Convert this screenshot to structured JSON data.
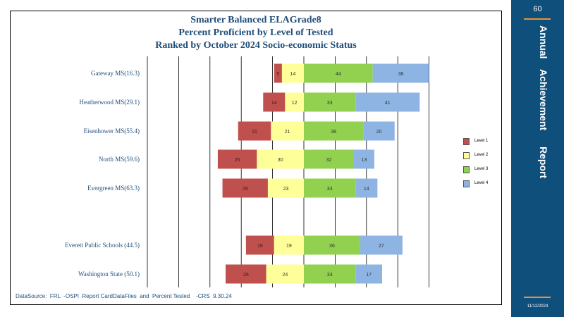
{
  "chart_data": {
    "type": "bar",
    "orientation": "horizontal-diverging",
    "title_lines": [
      "Smarter Balanced ELAGrade8",
      "Percent Proficient by Level of Tested",
      "Ranked by October 2024 Socio-economic  Status"
    ],
    "categories": [
      "Gateway  MS(16.3)",
      "Heatherwood  MS(29.1)",
      "Eisenhower MS(55.4)",
      "North MS(59.6)",
      "Evergreen MS(63.3)",
      "Everett Public Schools (44.5)",
      "Washington State (50.1)"
    ],
    "series": [
      {
        "name": "Level  1",
        "color": "#C0504D",
        "values": [
          5,
          14,
          21,
          25,
          29,
          18,
          26
        ]
      },
      {
        "name": "Level  2",
        "color": "#FFFF99",
        "values": [
          14,
          12,
          21,
          30,
          23,
          19,
          24
        ]
      },
      {
        "name": "Level  3",
        "color": "#92D050",
        "values": [
          44,
          33,
          38,
          32,
          33,
          36,
          33
        ]
      },
      {
        "name": "Level  4",
        "color": "#8EB4E3",
        "values": [
          36,
          41,
          20,
          13,
          14,
          27,
          17
        ]
      }
    ],
    "xlim": [
      -100,
      80
    ],
    "grid": "vertical",
    "legend_position": "right"
  },
  "footer": {
    "source": "DataSource:  FRL  -OSPI  Report CardDataFiles  and  Percent Tested    -CRS  9.30.24"
  },
  "sidebar": {
    "page_number": "60",
    "title_words": [
      "Annual",
      "Achievement",
      "Report"
    ],
    "date": "11/12/2024",
    "background": "#0F4F7C",
    "accent": "#E8913A"
  }
}
